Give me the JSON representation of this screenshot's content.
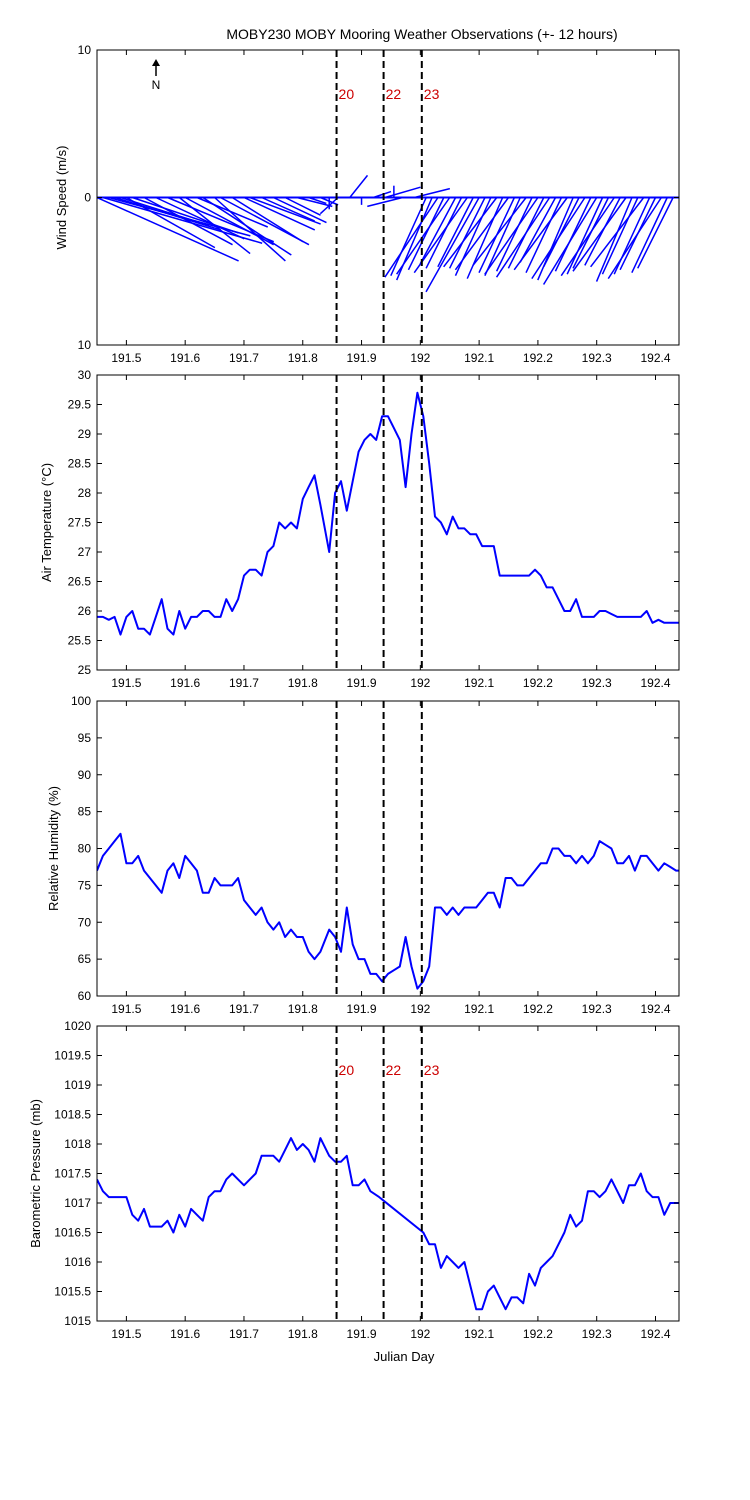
{
  "title": "MOBY230 MOBY Mooring Weather Observations (+- 12 hours)",
  "xlabel": "Julian Day",
  "north_label": "N",
  "colors": {
    "series": "#0000ff",
    "event_label": "#cc0000",
    "axes": "#000000"
  },
  "event_lines": {
    "x": [
      191.8575,
      191.9375,
      192.0025
    ],
    "labels": [
      "20",
      "22",
      "23"
    ]
  },
  "chart_data": [
    {
      "type": "line",
      "subtype": "wind-vector",
      "ylabel": "Wind Speed (m/s)",
      "xlim": [
        191.45,
        192.44
      ],
      "ylim": [
        -10,
        10
      ],
      "yticks": [
        10,
        0,
        10
      ],
      "xticks": [
        "191.5",
        "191.6",
        "191.7",
        "191.8",
        "191.9",
        "192",
        "192.1",
        "192.2",
        "192.3",
        "192.4"
      ],
      "event_labels_shown": true,
      "series": [
        {
          "x": [
            191.45,
            191.46,
            191.47,
            191.48,
            191.49,
            191.5,
            191.51,
            191.53,
            191.55,
            191.57,
            191.59,
            191.6,
            191.62,
            191.63,
            191.65,
            191.66,
            191.68,
            191.7,
            191.71,
            191.73,
            191.75,
            191.77,
            191.79,
            191.81,
            191.83,
            191.845,
            191.86,
            191.88,
            191.9,
            191.92,
            191.94,
            191.955,
            191.97,
            191.99,
            192.01,
            192.02,
            192.03,
            192.04,
            192.05,
            192.06,
            192.07,
            192.08,
            192.09,
            192.1,
            192.11,
            192.12,
            192.13,
            192.14,
            192.15,
            192.16,
            192.17,
            192.18,
            192.19,
            192.2,
            192.21,
            192.22,
            192.23,
            192.24,
            192.25,
            192.26,
            192.27,
            192.28,
            192.29,
            192.3,
            192.31,
            192.32,
            192.33,
            192.34,
            192.35,
            192.36,
            192.37,
            192.38,
            192.39,
            192.4,
            192.41,
            192.42,
            192.43
          ],
          "u": [
            0.8,
            0.9,
            0.8,
            0.6,
            0.5,
            0.5,
            0.6,
            0.5,
            0.5,
            0.6,
            0.4,
            0.5,
            0.4,
            0.5,
            0.4,
            0.5,
            0.4,
            0.4,
            0.4,
            0.3,
            0.3,
            0.2,
            0.2,
            0.1,
            0.1,
            0.0,
            -0.1,
            0.1,
            0.0,
            0.1,
            0.2,
            0.0,
            -0.2,
            0.2,
            -0.2,
            -0.2,
            -0.3,
            -0.2,
            -0.3,
            -0.2,
            -0.2,
            -0.3,
            -0.2,
            -0.3,
            -0.2,
            -0.2,
            -0.3,
            -0.2,
            -0.3,
            -0.2,
            -0.2,
            -0.3,
            -0.2,
            -0.3,
            -0.2,
            -0.3,
            -0.2,
            -0.2,
            -0.3,
            -0.2,
            -0.2,
            -0.3,
            -0.2,
            -0.3,
            -0.2,
            -0.2,
            -0.3,
            -0.2,
            -0.3,
            -0.2,
            -0.2,
            -0.3,
            -0.2,
            -0.2,
            -0.3,
            -0.2,
            -0.2
          ],
          "v": [
            -4.3,
            -3.1,
            -2.6,
            -2.2,
            -1.9,
            -3.4,
            -2.4,
            -3.2,
            -2.8,
            -3.0,
            -3.8,
            -3.2,
            -2.0,
            -3.9,
            -4.3,
            -3.2,
            -3.0,
            -2.2,
            -1.8,
            -1.6,
            -1.7,
            -1.2,
            -0.6,
            -0.4,
            -0.5,
            -0.8,
            -1.1,
            1.5,
            -0.5,
            0.4,
            0.7,
            0.8,
            -0.6,
            0.6,
            -5.3,
            -5.6,
            -5.4,
            -4.9,
            -5.2,
            -4.5,
            -4.8,
            -5.1,
            -4.7,
            -6.4,
            -4.8,
            -5.3,
            -4.7,
            -5.5,
            -4.9,
            -5.1,
            -5.3,
            -4.6,
            -5.0,
            -5.2,
            -4.8,
            -5.4,
            -4.4,
            -5.1,
            -4.9,
            -5.6,
            -4.7,
            -5.5,
            -5.0,
            -5.9,
            -5.2,
            -4.8,
            -5.3,
            -4.6,
            -5.0,
            -5.7,
            -5.2,
            -4.7,
            -5.2,
            -4.9,
            -5.5,
            -5.1,
            -4.8
          ]
        }
      ]
    },
    {
      "type": "line",
      "ylabel": "Air Temperature (°C)",
      "xlim": [
        191.45,
        192.44
      ],
      "ylim": [
        25,
        30
      ],
      "yticks": [
        25,
        25.5,
        26,
        26.5,
        27,
        27.5,
        28,
        28.5,
        29,
        29.5,
        30
      ],
      "xticks": [
        "191.5",
        "191.6",
        "191.7",
        "191.8",
        "191.9",
        "192",
        "192.1",
        "192.2",
        "192.3",
        "192.4"
      ],
      "event_labels_shown": false,
      "series": [
        {
          "x": [
            191.45,
            191.46,
            191.47,
            191.48,
            191.49,
            191.5,
            191.51,
            191.52,
            191.53,
            191.54,
            191.55,
            191.56,
            191.57,
            191.58,
            191.59,
            191.6,
            191.61,
            191.62,
            191.63,
            191.64,
            191.65,
            191.66,
            191.67,
            191.68,
            191.69,
            191.7,
            191.71,
            191.72,
            191.73,
            191.74,
            191.75,
            191.76,
            191.77,
            191.78,
            191.79,
            191.8,
            191.81,
            191.82,
            191.83,
            191.845,
            191.855,
            191.865,
            191.875,
            191.885,
            191.895,
            191.905,
            191.915,
            191.925,
            191.935,
            191.945,
            191.955,
            191.965,
            191.975,
            191.985,
            191.995,
            192.005,
            192.015,
            192.025,
            192.035,
            192.045,
            192.055,
            192.065,
            192.075,
            192.085,
            192.095,
            192.105,
            192.115,
            192.125,
            192.135,
            192.145,
            192.155,
            192.165,
            192.175,
            192.185,
            192.195,
            192.205,
            192.215,
            192.225,
            192.235,
            192.245,
            192.255,
            192.265,
            192.275,
            192.285,
            192.295,
            192.305,
            192.315,
            192.325,
            192.335,
            192.345,
            192.355,
            192.365,
            192.375,
            192.385,
            192.395,
            192.405,
            192.415,
            192.425,
            192.435,
            192.44
          ],
          "y": [
            25.9,
            25.9,
            25.85,
            25.9,
            25.6,
            25.9,
            26.0,
            25.7,
            25.7,
            25.6,
            25.9,
            26.2,
            25.7,
            25.6,
            26.0,
            25.7,
            25.9,
            25.9,
            26.0,
            26.0,
            25.9,
            25.9,
            26.2,
            26.0,
            26.2,
            26.6,
            26.7,
            26.7,
            26.6,
            27.0,
            27.1,
            27.5,
            27.4,
            27.5,
            27.4,
            27.9,
            28.1,
            28.3,
            27.8,
            27.0,
            28.0,
            28.2,
            27.7,
            28.2,
            28.7,
            28.9,
            29.0,
            28.9,
            29.3,
            29.3,
            29.1,
            28.9,
            28.1,
            29.0,
            29.7,
            29.3,
            28.5,
            27.6,
            27.5,
            27.3,
            27.6,
            27.4,
            27.4,
            27.3,
            27.3,
            27.1,
            27.1,
            27.1,
            26.6,
            26.6,
            26.6,
            26.6,
            26.6,
            26.6,
            26.7,
            26.6,
            26.4,
            26.4,
            26.2,
            26.0,
            26.0,
            26.2,
            25.9,
            25.9,
            25.9,
            26.0,
            26.0,
            25.95,
            25.9,
            25.9,
            25.9,
            25.9,
            25.9,
            26.0,
            25.8,
            25.85,
            25.8,
            25.8,
            25.8,
            25.8
          ]
        }
      ]
    },
    {
      "type": "line",
      "ylabel": "Relative Humidity (%)",
      "xlim": [
        191.45,
        192.44
      ],
      "ylim": [
        60,
        100
      ],
      "yticks": [
        60,
        65,
        70,
        75,
        80,
        85,
        90,
        95,
        100
      ],
      "xticks": [
        "191.5",
        "191.6",
        "191.7",
        "191.8",
        "191.9",
        "192",
        "192.1",
        "192.2",
        "192.3",
        "192.4"
      ],
      "event_labels_shown": false,
      "series": [
        {
          "x": [
            191.45,
            191.46,
            191.47,
            191.48,
            191.49,
            191.5,
            191.51,
            191.52,
            191.53,
            191.54,
            191.55,
            191.56,
            191.57,
            191.58,
            191.59,
            191.6,
            191.61,
            191.62,
            191.63,
            191.64,
            191.65,
            191.66,
            191.67,
            191.68,
            191.69,
            191.7,
            191.71,
            191.72,
            191.73,
            191.74,
            191.75,
            191.76,
            191.77,
            191.78,
            191.79,
            191.8,
            191.81,
            191.82,
            191.83,
            191.845,
            191.855,
            191.865,
            191.875,
            191.885,
            191.895,
            191.905,
            191.915,
            191.925,
            191.935,
            191.945,
            191.955,
            191.965,
            191.975,
            191.985,
            191.995,
            192.005,
            192.015,
            192.025,
            192.035,
            192.045,
            192.055,
            192.065,
            192.075,
            192.085,
            192.095,
            192.105,
            192.115,
            192.125,
            192.135,
            192.145,
            192.155,
            192.165,
            192.175,
            192.185,
            192.195,
            192.205,
            192.215,
            192.225,
            192.235,
            192.245,
            192.255,
            192.265,
            192.275,
            192.285,
            192.295,
            192.305,
            192.315,
            192.325,
            192.335,
            192.345,
            192.355,
            192.365,
            192.375,
            192.385,
            192.395,
            192.405,
            192.415,
            192.425,
            192.435,
            192.44
          ],
          "y": [
            77,
            79,
            80,
            81,
            82,
            78,
            78,
            79,
            77,
            76,
            75,
            74,
            77,
            78,
            76,
            79,
            78,
            77,
            74,
            74,
            76,
            75,
            75,
            75,
            76,
            73,
            72,
            71,
            72,
            70,
            69,
            70,
            68,
            69,
            68,
            68,
            66,
            65,
            66,
            69,
            68,
            66,
            72,
            67,
            65,
            65,
            63,
            63,
            62,
            63,
            63.5,
            64,
            68,
            64,
            61,
            62,
            64,
            72,
            72,
            71,
            72,
            71,
            72,
            72,
            72,
            73,
            74,
            74,
            72,
            76,
            76,
            75,
            75,
            76,
            77,
            78,
            78,
            80,
            80,
            79,
            79,
            78,
            79,
            78,
            79,
            81,
            80.5,
            80,
            78,
            78,
            79,
            77,
            79,
            79,
            78,
            77,
            78,
            77.5,
            77,
            77
          ]
        }
      ]
    },
    {
      "type": "line",
      "ylabel": "Barometric Pressure (mb)",
      "xlim": [
        191.45,
        192.44
      ],
      "ylim": [
        1015,
        1020
      ],
      "yticks": [
        1015,
        1015.5,
        1016,
        1016.5,
        1017,
        1017.5,
        1018,
        1018.5,
        1019,
        1019.5,
        1020
      ],
      "xticks": [
        "191.5",
        "191.6",
        "191.7",
        "191.8",
        "191.9",
        "192",
        "192.1",
        "192.2",
        "192.3",
        "192.4"
      ],
      "event_labels_shown": true,
      "series": [
        {
          "x": [
            191.45,
            191.46,
            191.47,
            191.48,
            191.49,
            191.5,
            191.51,
            191.52,
            191.53,
            191.54,
            191.55,
            191.56,
            191.57,
            191.58,
            191.59,
            191.6,
            191.61,
            191.62,
            191.63,
            191.64,
            191.65,
            191.66,
            191.67,
            191.68,
            191.69,
            191.7,
            191.71,
            191.72,
            191.73,
            191.74,
            191.75,
            191.76,
            191.77,
            191.78,
            191.79,
            191.8,
            191.81,
            191.82,
            191.83,
            191.845,
            191.855,
            191.865,
            191.875,
            191.885,
            191.895,
            191.905,
            191.915,
            191.93,
            192.005,
            192.015,
            192.025,
            192.035,
            192.045,
            192.055,
            192.065,
            192.075,
            192.085,
            192.095,
            192.105,
            192.115,
            192.125,
            192.135,
            192.145,
            192.155,
            192.165,
            192.175,
            192.185,
            192.195,
            192.205,
            192.215,
            192.225,
            192.235,
            192.245,
            192.255,
            192.265,
            192.275,
            192.285,
            192.295,
            192.305,
            192.315,
            192.325,
            192.335,
            192.345,
            192.355,
            192.365,
            192.375,
            192.385,
            192.395,
            192.405,
            192.415,
            192.425,
            192.435,
            192.44
          ],
          "y": [
            1017.4,
            1017.2,
            1017.1,
            1017.1,
            1017.1,
            1017.1,
            1016.8,
            1016.7,
            1016.9,
            1016.6,
            1016.6,
            1016.6,
            1016.7,
            1016.5,
            1016.8,
            1016.6,
            1016.9,
            1016.8,
            1016.7,
            1017.1,
            1017.2,
            1017.2,
            1017.4,
            1017.5,
            1017.4,
            1017.3,
            1017.4,
            1017.5,
            1017.8,
            1017.8,
            1017.8,
            1017.7,
            1017.9,
            1018.1,
            1017.9,
            1018.0,
            1017.9,
            1017.7,
            1018.1,
            1017.8,
            1017.7,
            1017.7,
            1017.8,
            1017.3,
            1017.3,
            1017.4,
            1017.2,
            1017.1,
            1016.5,
            1016.3,
            1016.3,
            1015.9,
            1016.1,
            1016.0,
            1015.9,
            1016.0,
            1015.6,
            1015.2,
            1015.2,
            1015.5,
            1015.6,
            1015.4,
            1015.2,
            1015.4,
            1015.4,
            1015.3,
            1015.8,
            1015.6,
            1015.9,
            1016.0,
            1016.1,
            1016.3,
            1016.5,
            1016.8,
            1016.6,
            1016.7,
            1017.2,
            1017.2,
            1017.1,
            1017.2,
            1017.4,
            1017.2,
            1017.0,
            1017.3,
            1017.3,
            1017.5,
            1017.2,
            1017.1,
            1017.1,
            1016.8,
            1017.0,
            1017.0,
            1017.0
          ]
        }
      ]
    }
  ]
}
